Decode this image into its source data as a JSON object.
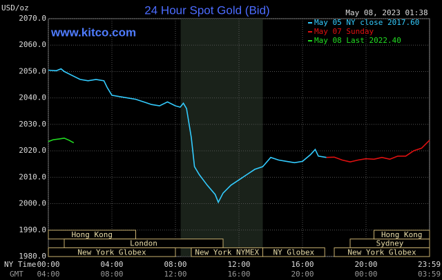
{
  "chart_data": {
    "type": "line",
    "title": "24 Hour Spot Gold (Bid)",
    "timestamp": "May 08, 2023 01:38",
    "watermark": "www.kitco.com",
    "y_unit": "USD/oz",
    "x_row_label": "NY Time",
    "x2_row_label": "GMT",
    "xlim": [
      0,
      24
    ],
    "ylim": [
      1980,
      2070
    ],
    "xticks": [
      {
        "value": 0,
        "label": "00:00"
      },
      {
        "value": 4,
        "label": "04:00"
      },
      {
        "value": 8,
        "label": "08:00"
      },
      {
        "value": 12,
        "label": "12:00"
      },
      {
        "value": 16,
        "label": "16:00"
      },
      {
        "value": 20,
        "label": "20:00"
      },
      {
        "value": 23.98,
        "label": "23:59"
      }
    ],
    "x2ticks": [
      {
        "value": 0,
        "label": "04:00"
      },
      {
        "value": 4,
        "label": "08:00"
      },
      {
        "value": 8,
        "label": "12:00"
      },
      {
        "value": 12,
        "label": "16:00"
      },
      {
        "value": 16,
        "label": "20:00"
      },
      {
        "value": 20,
        "label": "00:00"
      },
      {
        "value": 23.98,
        "label": "03:59"
      }
    ],
    "yticks": [
      {
        "value": 1980,
        "label": "1980.0"
      },
      {
        "value": 1990,
        "label": "1990.0"
      },
      {
        "value": 2000,
        "label": "2000.0"
      },
      {
        "value": 2010,
        "label": "2010.0"
      },
      {
        "value": 2020,
        "label": "2020.0"
      },
      {
        "value": 2030,
        "label": "2030.0"
      },
      {
        "value": 2040,
        "label": "2040.0"
      },
      {
        "value": 2050,
        "label": "2050.0"
      },
      {
        "value": 2060,
        "label": "2060.0"
      },
      {
        "value": 2070,
        "label": "2070.0"
      }
    ],
    "grid": true,
    "highlight_range": [
      8.33,
      13.5
    ],
    "series": [
      {
        "name": "May 05 NY close 2017.60",
        "color": "#33ccff",
        "x": [
          0,
          0.5,
          0.8,
          1.0,
          1.5,
          2.0,
          2.5,
          3.0,
          3.5,
          3.7,
          4.0,
          4.5,
          5.0,
          5.5,
          6.0,
          6.5,
          7.0,
          7.5,
          8.0,
          8.3,
          8.5,
          8.7,
          9.0,
          9.2,
          9.5,
          10.0,
          10.5,
          10.7,
          11.0,
          11.5,
          12.0,
          12.5,
          13.0,
          13.5,
          14.0,
          14.5,
          15.0,
          15.5,
          16.0,
          16.5,
          16.8,
          17.0,
          17.5
        ],
        "values": [
          2050.5,
          2050.3,
          2051.0,
          2050.0,
          2048.5,
          2047.0,
          2046.5,
          2047.0,
          2046.5,
          2044.0,
          2041.0,
          2040.5,
          2040.0,
          2039.5,
          2038.5,
          2037.5,
          2037.0,
          2038.5,
          2037.0,
          2036.5,
          2038.0,
          2036.0,
          2025.0,
          2014.0,
          2011.0,
          2007.0,
          2003.5,
          2000.5,
          2004.0,
          2007.0,
          2009.0,
          2011.0,
          2013.0,
          2014.0,
          2017.5,
          2016.5,
          2016.0,
          2015.5,
          2016.0,
          2018.5,
          2020.5,
          2018.0,
          2017.5
        ]
      },
      {
        "name": "May 07 Sunday",
        "color": "#e01010",
        "x": [
          17.5,
          18.0,
          18.5,
          19.0,
          19.5,
          20.0,
          20.5,
          21.0,
          21.5,
          22.0,
          22.5,
          23.0,
          23.5,
          24.0
        ],
        "values": [
          2017.5,
          2017.6,
          2016.5,
          2015.8,
          2016.5,
          2017.0,
          2016.8,
          2017.5,
          2016.8,
          2018.0,
          2018.0,
          2020.0,
          2021.0,
          2024.0
        ]
      },
      {
        "name": "May 08 Last 2022.40",
        "color": "#22dd22",
        "x": [
          0,
          0.3,
          0.7,
          1.0,
          1.3,
          1.6
        ],
        "values": [
          2023.5,
          2024.2,
          2024.5,
          2024.8,
          2024.0,
          2023.0
        ]
      }
    ],
    "sessions": [
      {
        "label": "Hong Kong",
        "start": 0,
        "end": 5.5
      },
      {
        "label": "London",
        "start": 1,
        "end": 11
      },
      {
        "label": "New York Globex",
        "start": 0,
        "end": 8
      },
      {
        "label": "New York NYMEX",
        "start": 9,
        "end": 13.5
      },
      {
        "label": "NY Globex",
        "start": 13.5,
        "end": 17.4
      },
      {
        "label": "Sydney",
        "start": 19,
        "end": 24
      },
      {
        "label": "Hong Kong",
        "start": 20.5,
        "end": 24
      },
      {
        "label": "New York Globex",
        "start": 18,
        "end": 24
      }
    ]
  }
}
